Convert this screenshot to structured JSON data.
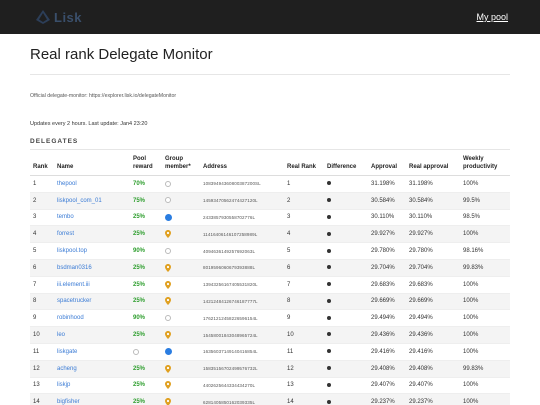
{
  "header": {
    "brand": "Lisk",
    "my_pool": "My pool"
  },
  "page": {
    "title": "Real rank Delegate Monitor",
    "official_text": "Official delegate-monitor: https://explorer.lisk.io/delegateMonitor",
    "updates": "Updates every 2 hours. Last update: Jan4 23:20",
    "section": "DELEGATES"
  },
  "table": {
    "columns": [
      "Rank",
      "Name",
      "Pool reward",
      "Group member*",
      "Address",
      "Real Rank",
      "Difference",
      "Approval",
      "Real approval",
      "Weekly productivity"
    ],
    "rows": [
      {
        "rank": "1",
        "name": "thepool",
        "reward": "70%",
        "member": "ring",
        "address": "10839494360800387200SL",
        "real_rank": "1",
        "approval": "31.198%",
        "real_approval": "31.198%",
        "weekly": "100%"
      },
      {
        "rank": "2",
        "name": "liskpool_com_01",
        "reward": "75%",
        "member": "ring",
        "address": "14593470562474427120L",
        "real_rank": "2",
        "approval": "30.584%",
        "real_approval": "30.584%",
        "weekly": "99.5%"
      },
      {
        "rank": "3",
        "name": "tembo",
        "reward": "25%",
        "member": "dot",
        "address": "2433857930558702776L",
        "real_rank": "3",
        "approval": "30.110%",
        "real_approval": "30.110%",
        "weekly": "98.5%"
      },
      {
        "rank": "4",
        "name": "forrest",
        "reward": "25%",
        "member": "pin",
        "address": "11416406146107258989L",
        "real_rank": "4",
        "approval": "29.927%",
        "real_approval": "29.927%",
        "weekly": "100%"
      },
      {
        "rank": "5",
        "name": "liskpool.top",
        "reward": "90%",
        "member": "ring",
        "address": "4094636149257692063L",
        "real_rank": "5",
        "approval": "29.780%",
        "real_approval": "29.780%",
        "weekly": "98.16%"
      },
      {
        "rank": "6",
        "name": "bsdman0316",
        "reward": "25%",
        "member": "pin",
        "address": "8019596060679393888L",
        "real_rank": "6",
        "approval": "29.704%",
        "real_approval": "29.704%",
        "weekly": "99.83%"
      },
      {
        "rank": "7",
        "name": "iii.element.iii",
        "reward": "25%",
        "member": "pin",
        "address": "13943256167405531820L",
        "real_rank": "7",
        "approval": "29.683%",
        "real_approval": "29.683%",
        "weekly": "100%"
      },
      {
        "rank": "8",
        "name": "spacetrucker",
        "reward": "25%",
        "member": "pin",
        "address": "14212484126746187777L",
        "real_rank": "8",
        "approval": "29.669%",
        "real_approval": "29.669%",
        "weekly": "100%"
      },
      {
        "rank": "9",
        "name": "robinhood",
        "reward": "90%",
        "member": "ring",
        "address": "17621212458226596154L",
        "real_rank": "9",
        "approval": "29.494%",
        "real_approval": "29.494%",
        "weekly": "100%"
      },
      {
        "rank": "10",
        "name": "leo",
        "reward": "25%",
        "member": "pin",
        "address": "15458001843048965724L",
        "real_rank": "10",
        "approval": "29.436%",
        "real_approval": "29.436%",
        "weekly": "100%"
      },
      {
        "rank": "11",
        "name": "liskgate",
        "reward": "ring",
        "member": "dot",
        "address": "16356037149140416854L",
        "real_rank": "11",
        "approval": "29.416%",
        "real_approval": "29.416%",
        "weekly": "100%"
      },
      {
        "rank": "12",
        "name": "acheng",
        "reward": "25%",
        "member": "pin",
        "address": "15835156702499576732L",
        "real_rank": "12",
        "approval": "29.408%",
        "real_approval": "29.408%",
        "weekly": "99.83%"
      },
      {
        "rank": "13",
        "name": "liskjp",
        "reward": "25%",
        "member": "pin",
        "address": "4402625644334434270L",
        "real_rank": "13",
        "approval": "29.407%",
        "real_approval": "29.407%",
        "weekly": "100%"
      },
      {
        "rank": "14",
        "name": "bigfisher",
        "reward": "25%",
        "member": "pin",
        "address": "6281405850162039335L",
        "real_rank": "14",
        "approval": "29.237%",
        "real_approval": "29.237%",
        "weekly": "100%"
      }
    ]
  },
  "colors": {
    "topbar": "#1f1f1f",
    "link": "#3a7bd5",
    "reward_green": "#2e9e2e",
    "member_blue": "#2a7de1",
    "pin_gold": "#e0a020"
  },
  "icons": {
    "logo": "lisk-diamond-icon",
    "member_ring": "empty-circle-icon",
    "member_dot": "blue-dot-icon",
    "member_pin": "location-pin-icon",
    "difference": "dot-icon"
  }
}
